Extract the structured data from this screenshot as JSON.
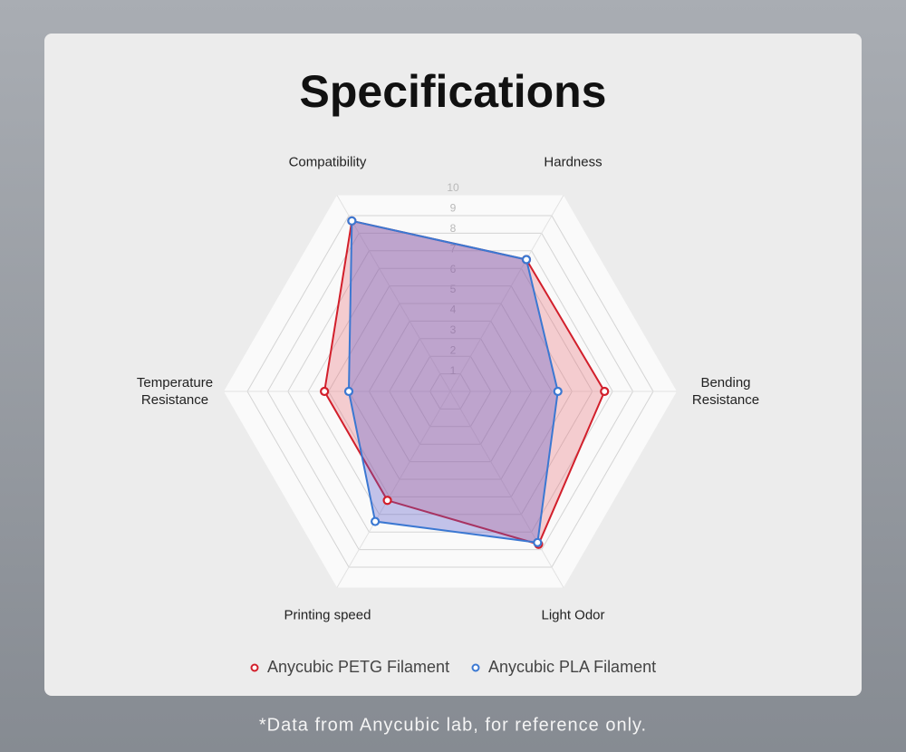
{
  "chart_data": {
    "type": "radar",
    "title": "Specifications",
    "categories": [
      "Compatibility",
      "Hardness",
      "Bending\nResistance",
      "Light Odor",
      "Printing speed",
      "Temperature\nResistance"
    ],
    "rlim": [
      0,
      10
    ],
    "rticks": [
      1,
      2,
      3,
      4,
      5,
      6,
      7,
      8,
      9,
      10
    ],
    "series": [
      {
        "name": "Anycubic PETG Filament",
        "color": "#d21f2b",
        "values": [
          9.7,
          7.5,
          7.6,
          8.7,
          6.2,
          6.2
        ]
      },
      {
        "name": "Anycubic PLA Filament",
        "color": "#3b78d2",
        "values": [
          9.7,
          7.5,
          5.3,
          8.6,
          7.4,
          5.0
        ]
      }
    ],
    "footnote": "*Data from Anycubic lab, for reference only."
  }
}
